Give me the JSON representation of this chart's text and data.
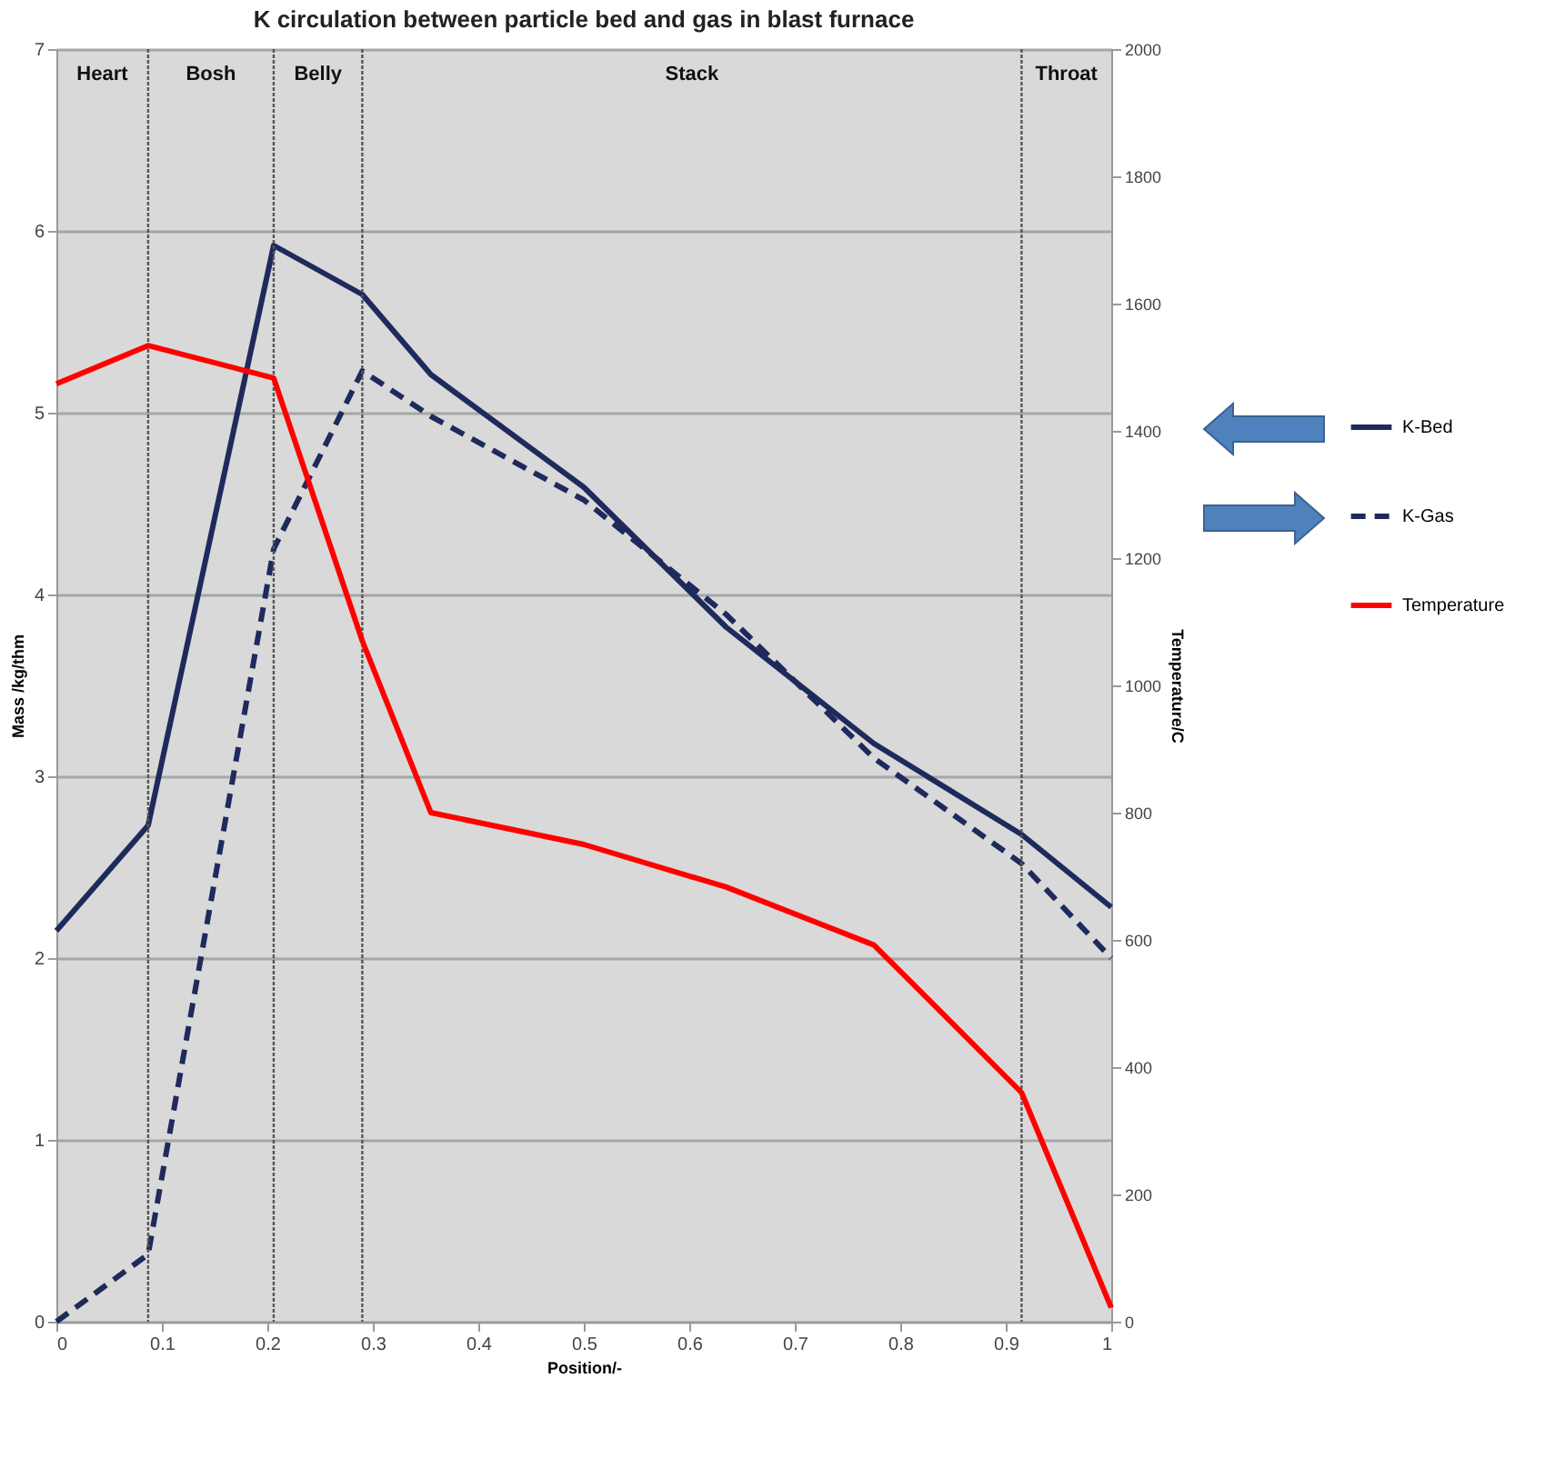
{
  "chart_data": {
    "type": "line",
    "title": "K circulation between particle bed and gas in blast furnace",
    "xlabel": "Position/-",
    "ylabel": "Mass /kg/thm",
    "y2label": "Temperature/C",
    "x": [
      0,
      0.087,
      0.206,
      0.29,
      0.355,
      0.5,
      0.635,
      0.775,
      0.915,
      1
    ],
    "series": [
      {
        "name": "K-Bed",
        "color": "#1f2a5c",
        "line_style": "solid",
        "values": [
          2.15,
          2.73,
          5.92,
          5.65,
          5.21,
          4.59,
          3.82,
          3.18,
          2.68,
          2.28
        ]
      },
      {
        "name": "K-Gas",
        "color": "#1f2a5c",
        "line_style": "dashed",
        "values": [
          0,
          0.37,
          4.25,
          5.23,
          4.98,
          4.52,
          3.89,
          3.1,
          2.52,
          2.0
        ]
      },
      {
        "name": "Temperature",
        "color": "#ff0000",
        "line_style": "solid",
        "axis": "y2",
        "values": [
          1474,
          1534,
          1483,
          1070,
          800,
          750,
          683,
          592,
          360,
          22
        ]
      }
    ],
    "xlim": [
      0,
      1
    ],
    "xticks": [
      0,
      0.1,
      0.2,
      0.3,
      0.4,
      0.5,
      0.6,
      0.7,
      0.8,
      0.9,
      1
    ],
    "ylim": [
      0,
      7
    ],
    "yticks": [
      0,
      1,
      2,
      3,
      4,
      5,
      6,
      7
    ],
    "y2lim": [
      0,
      2000
    ],
    "y2ticks": [
      0,
      200,
      400,
      600,
      800,
      1000,
      1200,
      1400,
      1600,
      1800,
      2000
    ],
    "ref_lines": [
      {
        "axis": "x",
        "value": 0.087,
        "line_style": "dotted"
      },
      {
        "axis": "x",
        "value": 0.206,
        "line_style": "dotted"
      },
      {
        "axis": "x",
        "value": 0.29,
        "line_style": "dotted"
      },
      {
        "axis": "x",
        "value": 0.915,
        "line_style": "dotted"
      }
    ],
    "annotations": [
      "Heart",
      "Bosh",
      "Belly",
      "Stack",
      "Throat"
    ],
    "grid": "y",
    "legend": "right",
    "marker": "none"
  }
}
